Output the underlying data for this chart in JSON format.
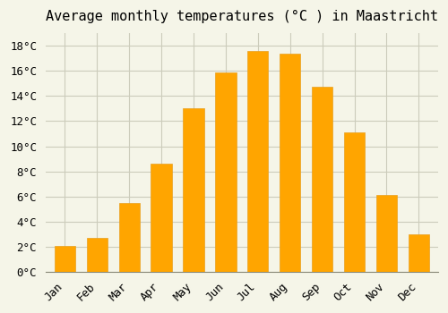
{
  "title": "Average monthly temperatures (°C ) in Maastricht",
  "months": [
    "Jan",
    "Feb",
    "Mar",
    "Apr",
    "May",
    "Jun",
    "Jul",
    "Aug",
    "Sep",
    "Oct",
    "Nov",
    "Dec"
  ],
  "temperatures": [
    2.1,
    2.7,
    5.5,
    8.6,
    13.0,
    15.9,
    17.6,
    17.4,
    14.7,
    11.1,
    6.1,
    3.0
  ],
  "bar_color": "#FFA500",
  "bar_edge_color": "#E8A020",
  "ylim": [
    0,
    19
  ],
  "yticks": [
    0,
    2,
    4,
    6,
    8,
    10,
    12,
    14,
    16,
    18
  ],
  "ytick_labels": [
    "0°C",
    "2°C",
    "4°C",
    "6°C",
    "8°C",
    "10°C",
    "12°C",
    "14°C",
    "16°C",
    "18°C"
  ],
  "background_color": "#f5f5e8",
  "grid_color": "#ccccbb",
  "title_fontsize": 11,
  "tick_fontsize": 9,
  "bar_width": 0.65
}
